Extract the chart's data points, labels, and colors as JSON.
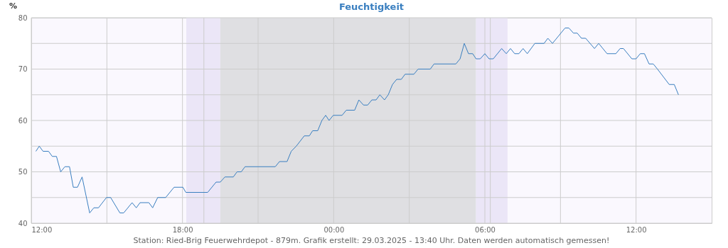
{
  "chart_data": {
    "type": "line",
    "title": "Feuchtigkeit",
    "ylabel": "%",
    "annotations": [
      "Station: Ried-Brig Feuerwehrdepot - 879m. Grafik erstellt: 29.03.2025 - 13:40 Uhr. Daten werden automatisch gemessen!"
    ],
    "x": [
      "2025-03-28T12:11",
      "2025-03-28T12:19",
      "2025-03-28T12:28",
      "2025-03-28T12:41",
      "2025-03-28T12:50",
      "2025-03-28T13:00",
      "2025-03-28T13:10",
      "2025-03-28T13:20",
      "2025-03-28T13:31",
      "2025-03-28T13:40",
      "2025-03-28T13:50",
      "2025-03-28T14:01",
      "2025-03-28T14:19",
      "2025-03-28T14:29",
      "2025-03-28T14:40",
      "2025-03-28T14:59",
      "2025-03-28T15:09",
      "2025-03-28T15:31",
      "2025-03-28T15:40",
      "2025-03-28T16:00",
      "2025-03-28T16:10",
      "2025-03-28T16:19",
      "2025-03-28T16:40",
      "2025-03-28T16:49",
      "2025-03-28T17:01",
      "2025-03-28T17:20",
      "2025-03-28T17:40",
      "2025-03-28T18:01",
      "2025-03-28T18:08",
      "2025-03-28T19:00",
      "2025-03-28T19:20",
      "2025-03-28T19:30",
      "2025-03-28T19:41",
      "2025-03-28T20:01",
      "2025-03-28T20:10",
      "2025-03-28T20:20",
      "2025-03-28T20:29",
      "2025-03-28T21:41",
      "2025-03-28T21:51",
      "2025-03-28T22:09",
      "2025-03-28T22:19",
      "2025-03-28T22:31",
      "2025-03-28T22:50",
      "2025-03-28T23:02",
      "2025-03-28T23:10",
      "2025-03-28T23:22",
      "2025-03-28T23:32",
      "2025-03-28T23:41",
      "2025-03-28T23:49",
      "2025-03-28T23:59",
      "2025-03-29T00:20",
      "2025-03-29T00:30",
      "2025-03-29T00:50",
      "2025-03-29T01:00",
      "2025-03-29T01:11",
      "2025-03-29T01:21",
      "2025-03-29T01:31",
      "2025-03-29T01:41",
      "2025-03-29T01:50",
      "2025-03-29T02:01",
      "2025-03-29T02:10",
      "2025-03-29T02:20",
      "2025-03-29T02:30",
      "2025-03-29T02:41",
      "2025-03-29T02:50",
      "2025-03-29T03:11",
      "2025-03-29T03:21",
      "2025-03-29T03:50",
      "2025-03-29T03:59",
      "2025-03-29T04:51",
      "2025-03-29T05:01",
      "2025-03-29T05:11",
      "2025-03-29T05:21",
      "2025-03-29T05:31",
      "2025-03-29T05:39",
      "2025-03-29T05:49",
      "2025-03-29T06:00",
      "2025-03-29T06:10",
      "2025-03-29T06:20",
      "2025-03-29T06:40",
      "2025-03-29T06:51",
      "2025-03-29T07:01",
      "2025-03-29T07:11",
      "2025-03-29T07:21",
      "2025-03-29T07:31",
      "2025-03-29T07:41",
      "2025-03-29T07:59",
      "2025-03-29T08:21",
      "2025-03-29T08:30",
      "2025-03-29T08:41",
      "2025-03-29T09:11",
      "2025-03-29T09:20",
      "2025-03-29T09:31",
      "2025-03-29T09:40",
      "2025-03-29T09:50",
      "2025-03-29T10:00",
      "2025-03-29T10:21",
      "2025-03-29T10:31",
      "2025-03-29T10:51",
      "2025-03-29T11:12",
      "2025-03-29T11:22",
      "2025-03-29T11:30",
      "2025-03-29T11:50",
      "2025-03-29T12:00",
      "2025-03-29T12:10",
      "2025-03-29T12:20",
      "2025-03-29T12:31",
      "2025-03-29T12:41",
      "2025-03-29T12:51",
      "2025-03-29T13:19",
      "2025-03-29T13:31",
      "2025-03-29T13:41"
    ],
    "series": [
      {
        "color": "#3a7fc0",
        "values": [
          54,
          55,
          54,
          54,
          53,
          53,
          50,
          51,
          51,
          47,
          47,
          49,
          42,
          43,
          43,
          45,
          45,
          42,
          42,
          44,
          43,
          44,
          44,
          43,
          45,
          45,
          47,
          47,
          46,
          46,
          48,
          48,
          49,
          49,
          50,
          50,
          51,
          51,
          52,
          52,
          54,
          55,
          57,
          57,
          58,
          58,
          60,
          61,
          60,
          61,
          61,
          62,
          62,
          64,
          63,
          63,
          64,
          64,
          65,
          64,
          65,
          67,
          68,
          68,
          69,
          69,
          70,
          70,
          71,
          71,
          72,
          75,
          73,
          73,
          72,
          72,
          73,
          72,
          72,
          74,
          73,
          74,
          73,
          73,
          74,
          73,
          75,
          75,
          76,
          75,
          78,
          78,
          77,
          77,
          76,
          76,
          74,
          75,
          73,
          73,
          74,
          74,
          72,
          72,
          73,
          73,
          71,
          71,
          70,
          67,
          67,
          65
        ]
      }
    ],
    "xlim": [
      "2025-03-28T12:00",
      "2025-03-29T15:00"
    ],
    "xticks": [
      {
        "value": "2025-03-28T12:00",
        "label": "12:00"
      },
      {
        "value": "2025-03-28T15:00",
        "label": null
      },
      {
        "value": "2025-03-28T18:00",
        "label": "18:00"
      },
      {
        "value": "2025-03-28T21:00",
        "label": null
      },
      {
        "value": "2025-03-29T00:00",
        "label": "00:00"
      },
      {
        "value": "2025-03-29T03:00",
        "label": null
      },
      {
        "value": "2025-03-29T06:00",
        "label": "06:00"
      },
      {
        "value": "2025-03-29T09:00",
        "label": null
      },
      {
        "value": "2025-03-29T12:00",
        "label": "12:00"
      }
    ],
    "ylim": [
      40,
      80
    ],
    "yticks": [
      40,
      {
        "value": 45,
        "label": null
      },
      50,
      {
        "value": 55,
        "label": null
      },
      60,
      {
        "value": 65,
        "label": null
      },
      70,
      {
        "value": 75,
        "label": null
      },
      80
    ],
    "grid": true,
    "bands": [
      {
        "axis": "x",
        "from": "2025-03-28T18:09",
        "to": "2025-03-28T19:30",
        "color": "#ebe6f7"
      },
      {
        "axis": "x",
        "from": "2025-03-28T19:30",
        "to": "2025-03-29T05:39",
        "color": "#dfdfe2"
      },
      {
        "axis": "x",
        "from": "2025-03-29T05:39",
        "to": "2025-03-29T06:54",
        "color": "#ebe6f7"
      }
    ],
    "ref_lines": [
      {
        "axis": "x",
        "value": "2025-03-28T18:51",
        "color": "#cccccc"
      },
      {
        "axis": "x",
        "value": "2025-03-29T06:13",
        "color": "#cccccc"
      }
    ]
  }
}
